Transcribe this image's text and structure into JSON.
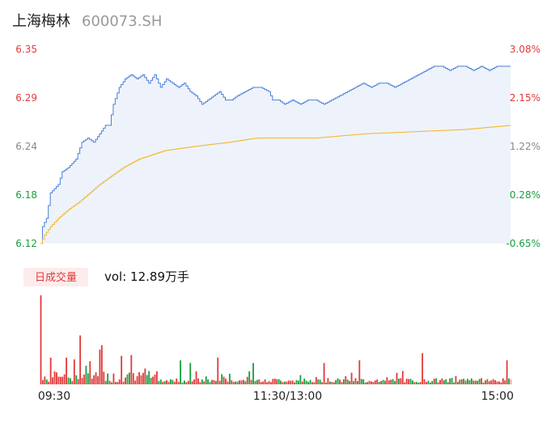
{
  "header": {
    "name": "上海梅林",
    "code": "600073.SH"
  },
  "colors": {
    "price_line": "#4a7fd8",
    "price_fill": "#eef3fb",
    "avg_line": "#f5b52a",
    "up": "#e23a3a",
    "down": "#1a9e3f",
    "neutral": "#888888",
    "tag_bg": "#fdecec"
  },
  "volume_tag": {
    "label": "日成交量",
    "vol_text": "vol: 12.89万手"
  },
  "chart_data": {
    "type": "line",
    "prev_close": 6.16,
    "y_ticks_left": [
      "6.35",
      "6.29",
      "6.24",
      "6.18",
      "6.12"
    ],
    "y_ticks_right": [
      "3.08%",
      "2.15%",
      "1.22%",
      "0.28%",
      "-0.65%"
    ],
    "ylim": [
      6.12,
      6.35
    ],
    "x_ticks": [
      "09:30",
      "11:30/13:00",
      "15:00"
    ],
    "price_anchors": [
      [
        0,
        6.12
      ],
      [
        1,
        6.14
      ],
      [
        3,
        6.15
      ],
      [
        5,
        6.18
      ],
      [
        9,
        6.19
      ],
      [
        11,
        6.205
      ],
      [
        14,
        6.21
      ],
      [
        18,
        6.22
      ],
      [
        21,
        6.24
      ],
      [
        24,
        6.245
      ],
      [
        27,
        6.24
      ],
      [
        30,
        6.25
      ],
      [
        33,
        6.26
      ],
      [
        35,
        6.26
      ],
      [
        37,
        6.285
      ],
      [
        40,
        6.305
      ],
      [
        43,
        6.315
      ],
      [
        46,
        6.32
      ],
      [
        49,
        6.315
      ],
      [
        52,
        6.32
      ],
      [
        55,
        6.31
      ],
      [
        58,
        6.32
      ],
      [
        61,
        6.305
      ],
      [
        64,
        6.315
      ],
      [
        67,
        6.31
      ],
      [
        70,
        6.305
      ],
      [
        73,
        6.31
      ],
      [
        76,
        6.3
      ],
      [
        79,
        6.295
      ],
      [
        82,
        6.285
      ],
      [
        85,
        6.29
      ],
      [
        88,
        6.295
      ],
      [
        91,
        6.3
      ],
      [
        94,
        6.29
      ],
      [
        97,
        6.29
      ],
      [
        100,
        6.295
      ],
      [
        104,
        6.3
      ],
      [
        108,
        6.305
      ],
      [
        112,
        6.305
      ],
      [
        116,
        6.3
      ],
      [
        118,
        6.29
      ],
      [
        121,
        6.29
      ],
      [
        124,
        6.285
      ],
      [
        128,
        6.29
      ],
      [
        132,
        6.285
      ],
      [
        136,
        6.29
      ],
      [
        140,
        6.29
      ],
      [
        144,
        6.285
      ],
      [
        148,
        6.29
      ],
      [
        152,
        6.295
      ],
      [
        156,
        6.3
      ],
      [
        160,
        6.305
      ],
      [
        164,
        6.31
      ],
      [
        168,
        6.305
      ],
      [
        172,
        6.31
      ],
      [
        176,
        6.31
      ],
      [
        180,
        6.305
      ],
      [
        184,
        6.31
      ],
      [
        188,
        6.315
      ],
      [
        192,
        6.32
      ],
      [
        196,
        6.325
      ],
      [
        200,
        6.33
      ],
      [
        204,
        6.33
      ],
      [
        208,
        6.325
      ],
      [
        212,
        6.33
      ],
      [
        216,
        6.33
      ],
      [
        220,
        6.325
      ],
      [
        224,
        6.33
      ],
      [
        228,
        6.325
      ],
      [
        232,
        6.33
      ],
      [
        236,
        6.33
      ],
      [
        239,
        6.33
      ]
    ],
    "avg_anchors": [
      [
        0,
        6.12
      ],
      [
        2,
        6.13
      ],
      [
        5,
        6.14
      ],
      [
        9,
        6.15
      ],
      [
        14,
        6.16
      ],
      [
        20,
        6.17
      ],
      [
        25,
        6.18
      ],
      [
        30,
        6.19
      ],
      [
        36,
        6.2
      ],
      [
        42,
        6.21
      ],
      [
        50,
        6.22
      ],
      [
        63,
        6.23
      ],
      [
        78,
        6.235
      ],
      [
        96,
        6.24
      ],
      [
        110,
        6.245
      ],
      [
        140,
        6.245
      ],
      [
        165,
        6.25
      ],
      [
        215,
        6.255
      ],
      [
        239,
        6.26
      ]
    ],
    "volume": {
      "seed": 7,
      "count": 240,
      "spikes": [
        [
          0,
          1.0,
          "up"
        ],
        [
          20,
          0.55,
          "up"
        ],
        [
          31,
          0.44,
          "up"
        ],
        [
          30,
          0.39,
          "up"
        ],
        [
          46,
          0.33,
          "up"
        ],
        [
          41,
          0.32,
          "up"
        ],
        [
          5,
          0.3,
          "up"
        ],
        [
          13,
          0.3,
          "up"
        ],
        [
          17,
          0.28,
          "up"
        ],
        [
          25,
          0.26,
          "up"
        ],
        [
          71,
          0.27,
          "down"
        ],
        [
          76,
          0.24,
          "down"
        ],
        [
          90,
          0.3,
          "up"
        ],
        [
          108,
          0.24,
          "down"
        ],
        [
          144,
          0.24,
          "up"
        ],
        [
          162,
          0.27,
          "up"
        ],
        [
          194,
          0.35,
          "up"
        ],
        [
          237,
          0.27,
          "up"
        ]
      ]
    }
  }
}
